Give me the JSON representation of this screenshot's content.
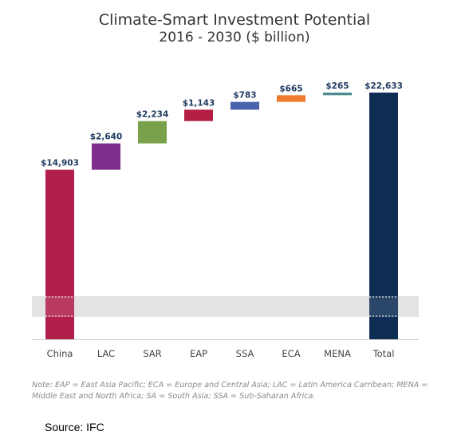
{
  "chart_data": {
    "type": "bar",
    "subtype": "waterfall",
    "title": "Climate-Smart Investment Potential",
    "subtitle": "2016 - 2030 ($ billion)",
    "categories": [
      "China",
      "LAC",
      "SAR",
      "EAP",
      "SSA",
      "ECA",
      "MENA",
      "Total"
    ],
    "values": [
      14903,
      2640,
      2234,
      1143,
      783,
      665,
      265,
      22633
    ],
    "value_labels": [
      "$14,903",
      "$2,640",
      "$2,234",
      "$1,143",
      "$783",
      "$665",
      "$265",
      "$22,633"
    ],
    "colors": [
      "#b0204a",
      "#7e2f8e",
      "#79a04a",
      "#b51f45",
      "#4a63ad",
      "#ef7b2e",
      "#4e8b8f",
      "#0d2d54"
    ],
    "axis_break_band": true,
    "xlabel": "",
    "ylabel": "",
    "grid": false
  },
  "note": "Note:  EAP = East Asia Pacific; ECA = Europe and Central Asia; LAC = Latin America Carribean; MENA = Middle East and North Africa; SA = South Asia; SSA = Sub-Saharan Africa.",
  "source": "Source: IFC"
}
